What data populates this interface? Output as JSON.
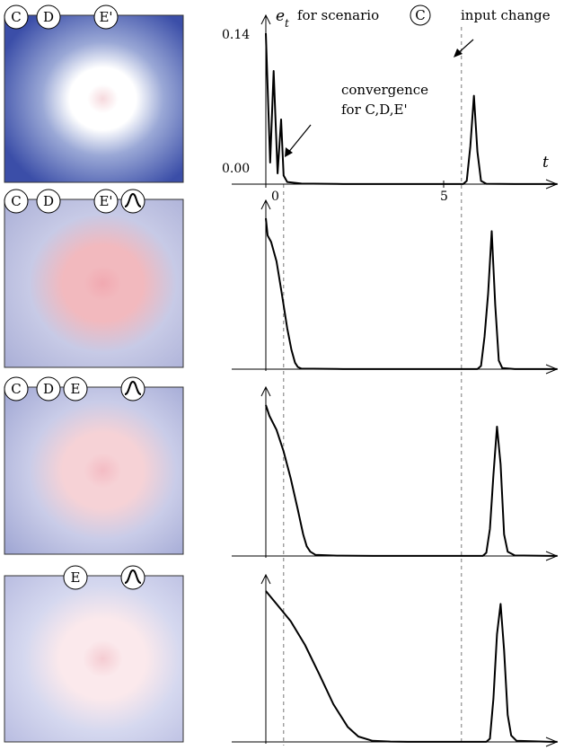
{
  "panels": [
    {
      "map": {
        "labels": [
          "C",
          "D",
          "E'"
        ],
        "bump_icon": false,
        "colors": {
          "background": "#3b4ea8",
          "mid": "#9aa8d6",
          "center": "#ffffff",
          "core": "#f6d9dd"
        }
      },
      "series": [
        [
          0,
          0.14
        ],
        [
          0.12,
          0.02
        ],
        [
          0.22,
          0.105
        ],
        [
          0.33,
          0.01
        ],
        [
          0.43,
          0.06
        ],
        [
          0.5,
          0.008
        ],
        [
          0.6,
          0.002
        ],
        [
          1.0,
          0.0005
        ],
        [
          2,
          0.0002
        ],
        [
          3,
          0.0001
        ],
        [
          4,
          0.0001
        ],
        [
          5,
          0.0001
        ],
        [
          5.55,
          0.0001
        ],
        [
          5.65,
          0.003
        ],
        [
          5.75,
          0.035
        ],
        [
          5.85,
          0.082
        ],
        [
          5.95,
          0.03
        ],
        [
          6.05,
          0.003
        ],
        [
          6.2,
          0.0003
        ],
        [
          7,
          0.0001
        ],
        [
          8,
          0.0001
        ],
        [
          8.2,
          0.0001
        ]
      ]
    },
    {
      "map": {
        "labels": [
          "C",
          "D",
          "E'"
        ],
        "bump_icon": true,
        "colors": {
          "background": "#a9aed6",
          "mid": "#c7cae6",
          "center": "#f2b9be",
          "core": "#f1a9b1"
        }
      },
      "series": [
        [
          0,
          0.14
        ],
        [
          0.05,
          0.124
        ],
        [
          0.15,
          0.118
        ],
        [
          0.3,
          0.1
        ],
        [
          0.45,
          0.07
        ],
        [
          0.6,
          0.038
        ],
        [
          0.72,
          0.018
        ],
        [
          0.82,
          0.006
        ],
        [
          0.9,
          0.002
        ],
        [
          1.0,
          0.0005
        ],
        [
          2,
          0.0002
        ],
        [
          3,
          0.0001
        ],
        [
          4,
          0.0001
        ],
        [
          5,
          0.0001
        ],
        [
          5.95,
          0.0001
        ],
        [
          6.05,
          0.003
        ],
        [
          6.15,
          0.03
        ],
        [
          6.25,
          0.07
        ],
        [
          6.35,
          0.128
        ],
        [
          6.45,
          0.06
        ],
        [
          6.55,
          0.008
        ],
        [
          6.65,
          0.001
        ],
        [
          7,
          0.0001
        ],
        [
          8,
          0.0001
        ],
        [
          8.2,
          0.0001
        ]
      ]
    },
    {
      "map": {
        "labels": [
          "C",
          "D",
          "E"
        ],
        "bump_icon": true,
        "colors": {
          "background": "#9da4d2",
          "mid": "#c9cce8",
          "center": "#f6d2d6",
          "core": "#f4bcc4"
        }
      },
      "series": [
        [
          0,
          0.14
        ],
        [
          0.1,
          0.13
        ],
        [
          0.3,
          0.117
        ],
        [
          0.5,
          0.097
        ],
        [
          0.7,
          0.072
        ],
        [
          0.9,
          0.043
        ],
        [
          1.05,
          0.02
        ],
        [
          1.15,
          0.009
        ],
        [
          1.25,
          0.004
        ],
        [
          1.4,
          0.001
        ],
        [
          2,
          0.0003
        ],
        [
          3,
          0.0001
        ],
        [
          4,
          0.0001
        ],
        [
          5,
          0.0001
        ],
        [
          6.1,
          0.0001
        ],
        [
          6.2,
          0.003
        ],
        [
          6.3,
          0.025
        ],
        [
          6.4,
          0.075
        ],
        [
          6.5,
          0.12
        ],
        [
          6.6,
          0.085
        ],
        [
          6.7,
          0.02
        ],
        [
          6.8,
          0.004
        ],
        [
          7,
          0.0005
        ],
        [
          8,
          0.0001
        ],
        [
          8.2,
          0.0001
        ]
      ]
    },
    {
      "map": {
        "labels": [
          "E"
        ],
        "bump_icon": true,
        "colors": {
          "background": "#b3b7de",
          "mid": "#d5d8ef",
          "center": "#fbe9ec",
          "core": "#f5ccd2"
        }
      },
      "series": [
        [
          0,
          0.14
        ],
        [
          0.3,
          0.128
        ],
        [
          0.7,
          0.112
        ],
        [
          1.1,
          0.09
        ],
        [
          1.5,
          0.063
        ],
        [
          1.9,
          0.035
        ],
        [
          2.3,
          0.014
        ],
        [
          2.6,
          0.005
        ],
        [
          3.0,
          0.001
        ],
        [
          3.5,
          0.0003
        ],
        [
          4,
          0.0001
        ],
        [
          5,
          0.0001
        ],
        [
          6.2,
          0.0001
        ],
        [
          6.3,
          0.003
        ],
        [
          6.4,
          0.04
        ],
        [
          6.5,
          0.1
        ],
        [
          6.6,
          0.128
        ],
        [
          6.7,
          0.085
        ],
        [
          6.8,
          0.025
        ],
        [
          6.9,
          0.006
        ],
        [
          7.05,
          0.001
        ],
        [
          8,
          0.0001
        ],
        [
          8.2,
          0.0001
        ]
      ]
    }
  ],
  "chart_data": {
    "type": "line",
    "x_name": "t",
    "y_name": "e",
    "y_subscript": "t",
    "title_prefix": "for scenario",
    "title_scenario": "C",
    "ytick_labels": [
      "0.14",
      "0.00"
    ],
    "yticks": [
      0.14,
      0.0
    ],
    "xticks": [
      0,
      5
    ],
    "xtick_labels": [
      "0",
      "5"
    ],
    "ylim": [
      0,
      0.14
    ],
    "xlim": [
      0,
      8.2
    ],
    "reference_lines_x": [
      0.5,
      5.5
    ],
    "annotations": [
      "convergence",
      "for C,D,E'",
      "input change"
    ],
    "panel_count": 4
  }
}
